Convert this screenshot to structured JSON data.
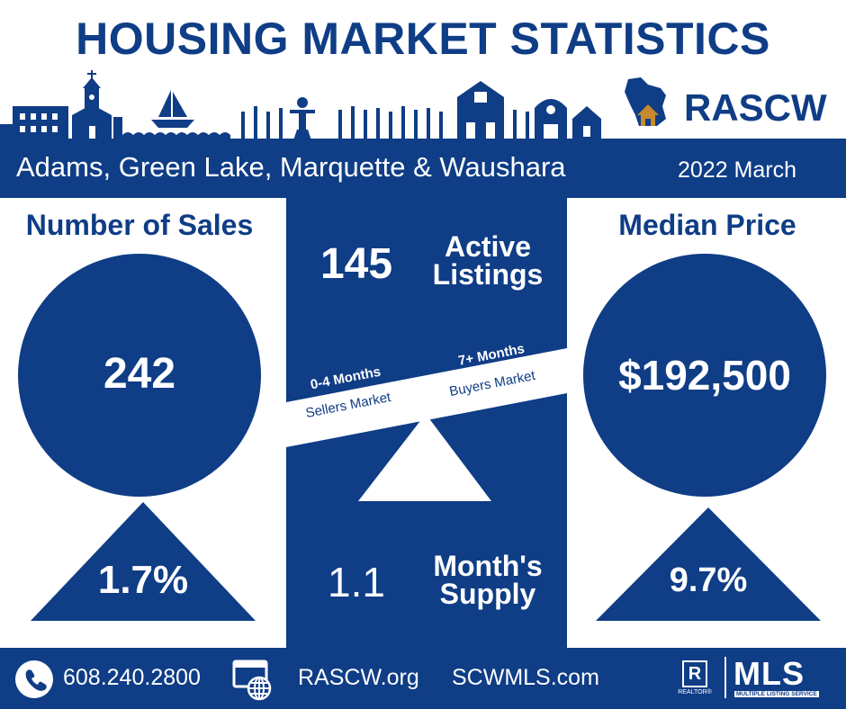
{
  "title": "HOUSING MARKET STATISTICS",
  "logo": {
    "text": "RASCW",
    "icon": "wisconsin-house-icon"
  },
  "banner": {
    "region": "Adams, Green Lake, Marquette & Waushara",
    "date": "2022 March"
  },
  "sales": {
    "heading": "Number of Sales",
    "value": "242",
    "change": "1.7%",
    "trend": "up"
  },
  "price": {
    "heading": "Median Price",
    "value": "$192,500",
    "change": "9.7%",
    "trend": "up"
  },
  "listings": {
    "value": "145",
    "label_line1": "Active",
    "label_line2": "Listings"
  },
  "scale": {
    "sellers_range": "0-4 Months",
    "sellers_label": "Sellers Market",
    "buyers_range": "7+ Months",
    "buyers_label": "Buyers Market"
  },
  "supply": {
    "value": "1.1",
    "label_line1": "Month's",
    "label_line2": "Supply"
  },
  "footer": {
    "phone": "608.240.2800",
    "site1": "RASCW.org",
    "site2": "SCWMLS.com",
    "mls_logo": "MLS",
    "mls_sub": "MULTIPLE LISTING SERVICE",
    "realtor_mark": "R",
    "realtor_text": "REALTOR®"
  },
  "colors": {
    "brand_navy": "#0f3d86",
    "logo_gold": "#c58a2e",
    "white": "#ffffff"
  }
}
